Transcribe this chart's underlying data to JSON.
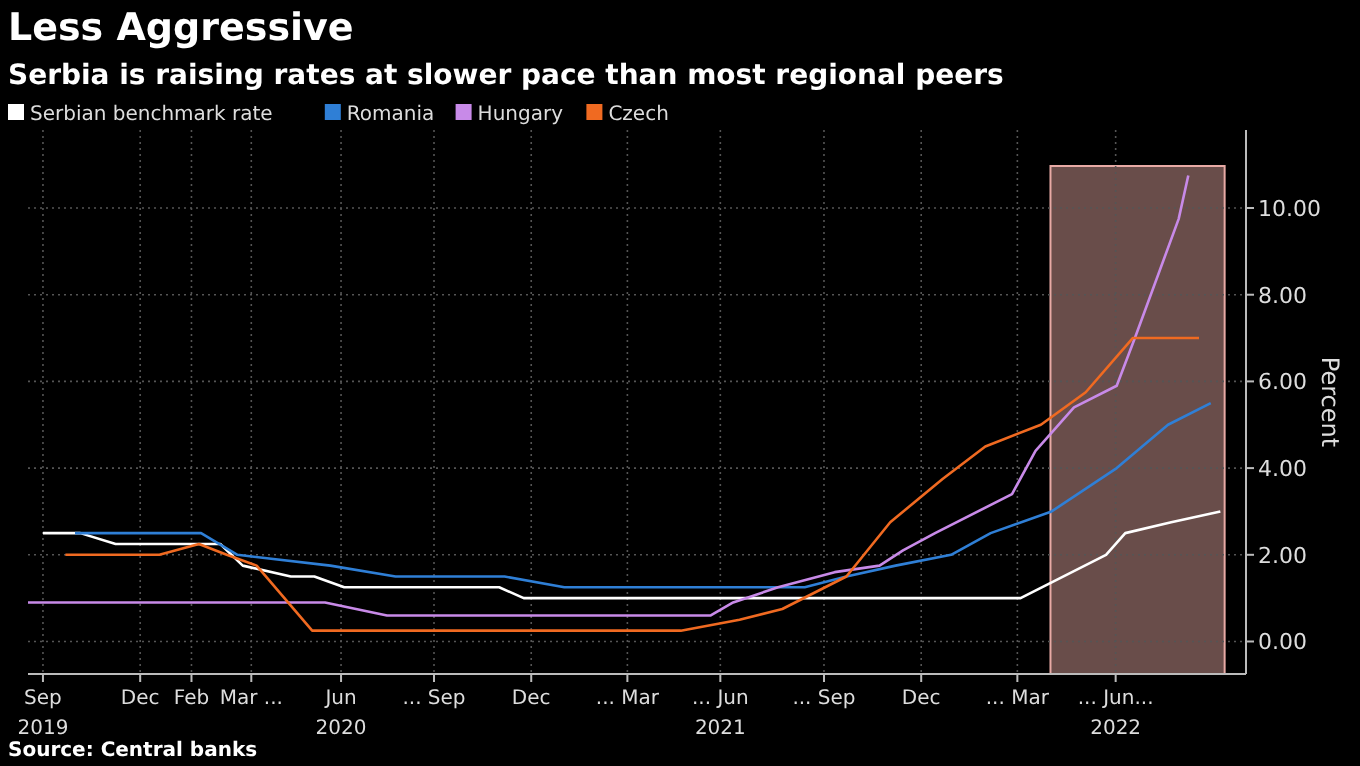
{
  "chart_data": {
    "type": "line",
    "title": "Less Aggressive",
    "subtitle": "Serbia is raising rates at slower pace than most regional peers",
    "ylabel": "Percent",
    "annotations": [
      "Source: Central banks"
    ],
    "xlim": [
      "2019-09-01",
      "2022-10-15"
    ],
    "ylim": [
      -0.75,
      11.8
    ],
    "xticks": [
      {
        "value": "2019-09-15",
        "label": "Sep\n2019"
      },
      {
        "value": "2019-12-15",
        "label": "Dec"
      },
      {
        "value": "2020-02-01",
        "label": "Feb"
      },
      {
        "value": "2020-03-28",
        "label": "Mar ..."
      },
      {
        "value": "2020-06-20",
        "label": "Jun\n2020"
      },
      {
        "value": "2020-09-15",
        "label": "... Sep"
      },
      {
        "value": "2020-12-15",
        "label": "Dec"
      },
      {
        "value": "2021-03-15",
        "label": "... Mar"
      },
      {
        "value": "2021-06-10",
        "label": "... Jun\n2021"
      },
      {
        "value": "2021-09-15",
        "label": "... Sep"
      },
      {
        "value": "2021-12-15",
        "label": "Dec"
      },
      {
        "value": "2022-03-15",
        "label": "... Mar"
      },
      {
        "value": "2022-06-15",
        "label": "... Jun...\n2022"
      }
    ],
    "yticks": [
      {
        "value": 0,
        "label": "0.00"
      },
      {
        "value": 2,
        "label": "2.00"
      },
      {
        "value": 4,
        "label": "4.00"
      },
      {
        "value": 6,
        "label": "6.00"
      },
      {
        "value": 8,
        "label": "8.00"
      },
      {
        "value": 10,
        "label": "10.00"
      }
    ],
    "grid": true,
    "legend": "top left",
    "bands": [
      {
        "axis": "x",
        "from": "2022-04-15",
        "to": "2022-09-25",
        "color": "#e8aaa5"
      }
    ],
    "series": [
      {
        "name": "Serbian benchmark rate",
        "color": "#ffffff",
        "x": [
          "2019-09-15",
          "2019-10-20",
          "2019-11-22",
          "2020-02-28",
          "2020-03-20",
          "2020-05-04",
          "2020-05-26",
          "2020-06-23",
          "2020-11-15",
          "2020-12-08",
          "2022-03-18",
          "2022-06-06",
          "2022-06-24",
          "2022-08-06",
          "2022-09-21"
        ],
        "values": [
          2.5,
          2.5,
          2.25,
          2.25,
          1.75,
          1.5,
          1.5,
          1.25,
          1.25,
          1.0,
          1.0,
          2.0,
          2.5,
          2.75,
          3.0
        ]
      },
      {
        "name": "Romania",
        "color": "#2f7fd6",
        "x": [
          "2019-10-15",
          "2020-02-10",
          "2020-03-15",
          "2020-06-10",
          "2020-08-10",
          "2020-11-20",
          "2021-01-15",
          "2021-08-28",
          "2021-10-06",
          "2021-11-21",
          "2022-01-12",
          "2022-02-18",
          "2022-04-16",
          "2022-06-16",
          "2022-08-03",
          "2022-09-12"
        ],
        "values": [
          2.5,
          2.5,
          2.0,
          1.75,
          1.5,
          1.5,
          1.25,
          1.25,
          1.5,
          1.75,
          2.0,
          2.5,
          3.0,
          4.0,
          5.0,
          5.5
        ]
      },
      {
        "name": "Hungary",
        "color": "#c88ae8",
        "x": [
          "2019-09-01",
          "2020-06-05",
          "2020-08-02",
          "2021-06-01",
          "2021-06-22",
          "2021-08-03",
          "2021-09-25",
          "2021-11-06",
          "2021-11-28",
          "2021-12-28",
          "2022-03-10",
          "2022-04-01",
          "2022-05-07",
          "2022-06-16",
          "2022-07-03",
          "2022-08-13",
          "2022-08-22"
        ],
        "values": [
          0.9,
          0.9,
          0.6,
          0.6,
          0.9,
          1.25,
          1.6,
          1.75,
          2.1,
          2.5,
          3.4,
          4.4,
          5.4,
          5.9,
          7.0,
          9.75,
          10.75
        ]
      },
      {
        "name": "Czech",
        "color": "#f06a21",
        "x": [
          "2019-10-06",
          "2020-01-02",
          "2020-02-08",
          "2020-03-05",
          "2020-04-02",
          "2020-05-24",
          "2021-05-04",
          "2021-06-28",
          "2021-08-07",
          "2021-10-06",
          "2021-11-16",
          "2022-01-04",
          "2022-02-13",
          "2022-04-06",
          "2022-05-18",
          "2022-07-01",
          "2022-09-01"
        ],
        "values": [
          2.0,
          2.0,
          2.25,
          2.0,
          1.75,
          0.25,
          0.25,
          0.5,
          0.75,
          1.5,
          2.75,
          3.75,
          4.5,
          5.0,
          5.75,
          7.0,
          7.0
        ]
      }
    ]
  }
}
